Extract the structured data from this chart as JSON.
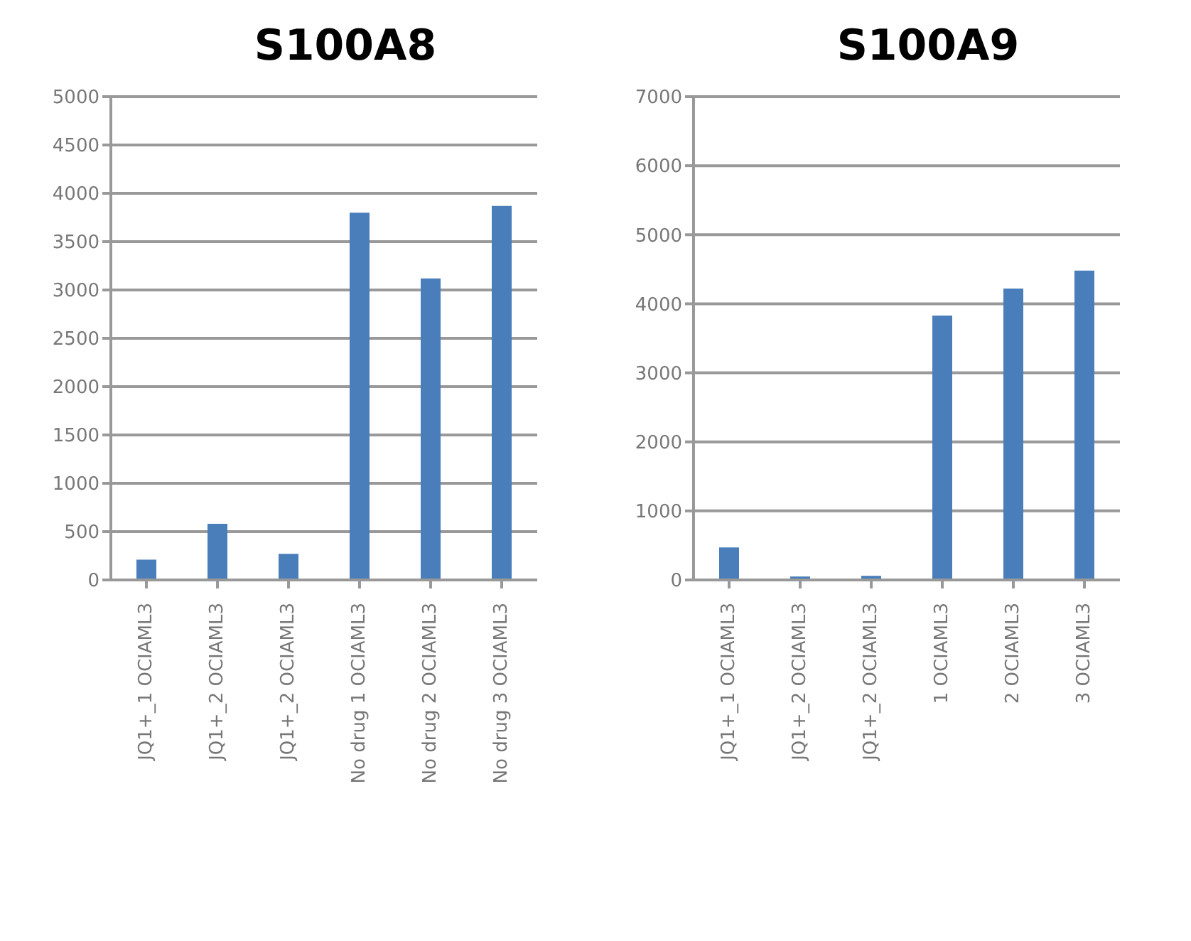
{
  "chart_data": [
    {
      "type": "bar",
      "title": "S100A8",
      "categories": [
        "JQ1+_1 OCIAML3",
        "JQ1+_2 OCIAML3",
        "JQ1+_2 OCIAML3",
        "No drug 1 OCIAML3",
        "No drug 2 OCIAML3",
        "No drug 3 OCIAML3"
      ],
      "values": [
        210,
        580,
        270,
        3800,
        3120,
        3870
      ],
      "color": "#4a7ebb",
      "ylim": [
        0,
        5000
      ],
      "yticks": [
        0,
        500,
        1000,
        1500,
        2000,
        2500,
        3000,
        3500,
        4000,
        4500,
        5000
      ],
      "grid": "y"
    },
    {
      "type": "bar",
      "title": "S100A9",
      "categories": [
        "JQ1+_1 OCIAML3",
        "JQ1+_2 OCIAML3",
        "JQ1+_2 OCIAML3",
        "1 OCIAML3",
        "2 OCIAML3",
        "3 OCIAML3"
      ],
      "values": [
        470,
        50,
        60,
        3830,
        4220,
        4480
      ],
      "color": "#4a7ebb",
      "ylim": [
        0,
        7000
      ],
      "yticks": [
        0,
        1000,
        2000,
        3000,
        4000,
        5000,
        6000,
        7000
      ],
      "grid": "y"
    }
  ]
}
